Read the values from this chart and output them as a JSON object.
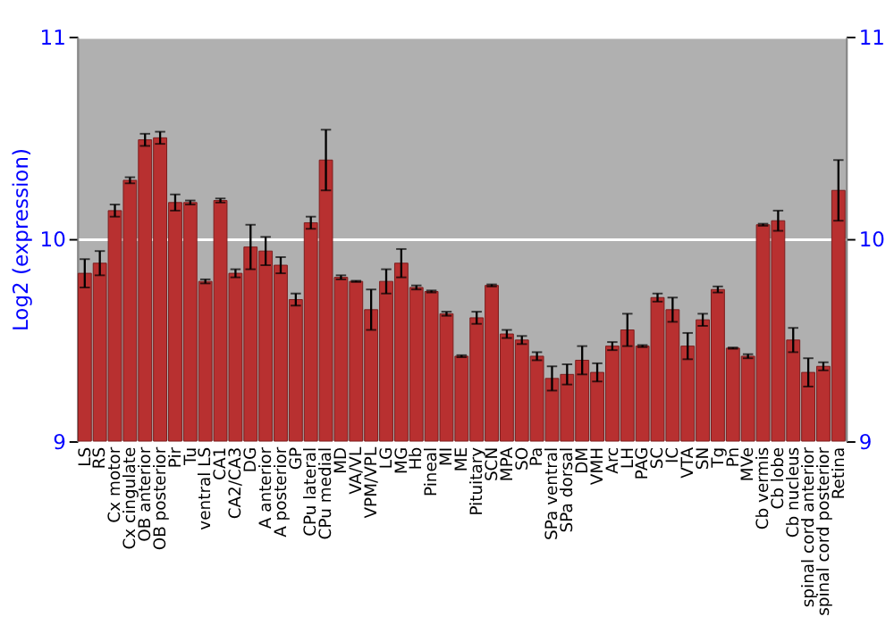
{
  "chart_data": {
    "type": "bar",
    "ylabel": "Log2 (expression)",
    "categories": [
      "LS",
      "RS",
      "Cx motor",
      "Cx cingulate",
      "OB anterior",
      "OB posterior",
      "Pir",
      "Tu",
      "ventral LS",
      "CA1",
      "CA2/CA3",
      "DG",
      "A anterior",
      "A posterior",
      "GP",
      "CPu lateral",
      "CPu medial",
      "MD",
      "VA/VL",
      "VPM/VPL",
      "LG",
      "MG",
      "Hb",
      "Pineal",
      "MI",
      "ME",
      "Pituitary",
      "SCN",
      "MPA",
      "SO",
      "Pa",
      "SPa ventral",
      "SPa dorsal",
      "DM",
      "VMH",
      "Arc",
      "LH",
      "PAG",
      "SC",
      "IC",
      "VTA",
      "SN",
      "Tg",
      "Pn",
      "MVe",
      "Cb vermis",
      "Cb lobe",
      "Cb nucleus",
      "spinal cord anterior",
      "spinal cord posterior",
      "Retina"
    ],
    "values": [
      9.83,
      9.88,
      10.14,
      10.29,
      10.49,
      10.5,
      10.18,
      10.18,
      9.79,
      10.19,
      9.83,
      9.96,
      9.94,
      9.87,
      9.7,
      10.08,
      10.39,
      9.81,
      9.79,
      9.65,
      9.79,
      9.88,
      9.76,
      9.74,
      9.63,
      9.42,
      9.61,
      9.77,
      9.53,
      9.5,
      9.42,
      9.31,
      9.33,
      9.4,
      9.34,
      9.47,
      9.55,
      9.47,
      9.71,
      9.65,
      9.47,
      9.6,
      9.75,
      9.46,
      9.42,
      10.07,
      10.09,
      9.5,
      9.34,
      9.37,
      10.24
    ],
    "errors": [
      0.07,
      0.06,
      0.03,
      0.015,
      0.03,
      0.03,
      0.04,
      0.01,
      0.01,
      0.01,
      0.02,
      0.11,
      0.07,
      0.04,
      0.03,
      0.03,
      0.15,
      0.01,
      0.003,
      0.1,
      0.06,
      0.07,
      0.01,
      0.005,
      0.01,
      0.005,
      0.03,
      0.005,
      0.02,
      0.02,
      0.02,
      0.06,
      0.05,
      0.07,
      0.045,
      0.02,
      0.08,
      0.005,
      0.02,
      0.06,
      0.065,
      0.03,
      0.015,
      0.003,
      0.01,
      0.005,
      0.05,
      0.06,
      0.07,
      0.02,
      0.15
    ],
    "color": "#b83030",
    "ylim": [
      9,
      11
    ],
    "yticks": [
      9,
      10,
      11
    ],
    "y2lim": [
      9,
      11
    ],
    "y2ticks": [
      9,
      10,
      11
    ],
    "grid": "y"
  }
}
